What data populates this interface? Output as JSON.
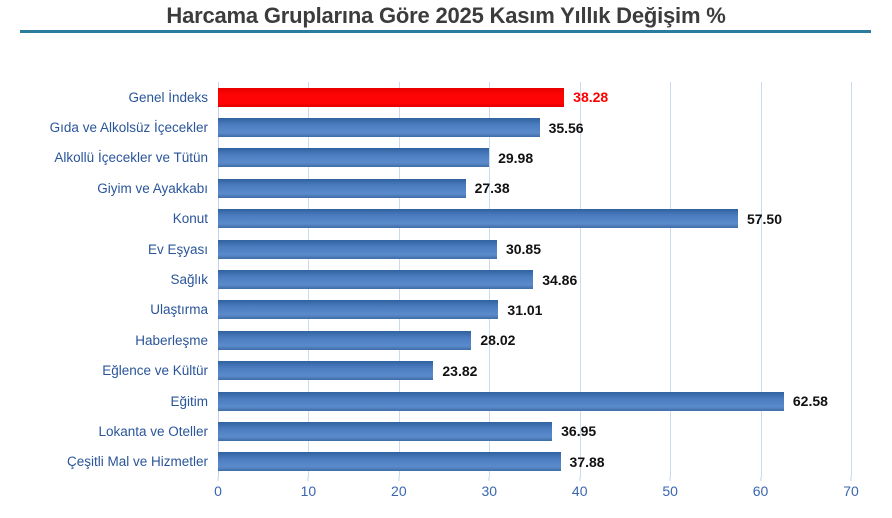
{
  "title": "Harcama Gruplarına Göre 2025 Kasım Yıllık Değişim %",
  "colors": {
    "bar_blue": "#4a7cc0",
    "bar_highlight_red": "#ff0000",
    "value_text": "#111111",
    "value_highlight_text": "#ff0000",
    "category_label_text": "#2a5599",
    "axis_tick_text": "#3a66b0",
    "title_text": "#3c3c3c",
    "title_underline": "#2b7c9d",
    "gridline": "#ccdaee"
  },
  "chart_data": {
    "type": "bar",
    "orientation": "horizontal",
    "title": "Harcama Gruplarına Göre 2025 Kasım Yıllık Değişim %",
    "categories": [
      "Genel İndeks",
      "Gıda ve Alkolsüz İçecekler",
      "Alkollü İçecekler ve Tütün",
      "Giyim ve Ayakkabı",
      "Konut",
      "Ev Eşyası",
      "Sağlık",
      "Ulaştırma",
      "Haberleşme",
      "Eğlence ve Kültür",
      "Eğitim",
      "Lokanta ve Oteller",
      "Çeşitli Mal ve Hizmetler"
    ],
    "values": [
      38.28,
      35.56,
      29.98,
      27.38,
      57.5,
      30.85,
      34.86,
      31.01,
      28.02,
      23.82,
      62.58,
      36.95,
      37.88
    ],
    "value_labels": [
      "38.28",
      "35.56",
      "29.98",
      "27.38",
      "57.50",
      "30.85",
      "34.86",
      "31.01",
      "28.02",
      "23.82",
      "62.58",
      "36.95",
      "37.88"
    ],
    "highlight_index": 0,
    "xlabel": "",
    "ylabel": "",
    "xlim": [
      0,
      70
    ],
    "x_ticks": [
      0,
      10,
      20,
      30,
      40,
      50,
      60,
      70
    ],
    "x_tick_labels": [
      "0",
      "10",
      "20",
      "30",
      "40",
      "50",
      "60",
      "70"
    ],
    "grid": true,
    "legend": false,
    "data_labels": true
  }
}
